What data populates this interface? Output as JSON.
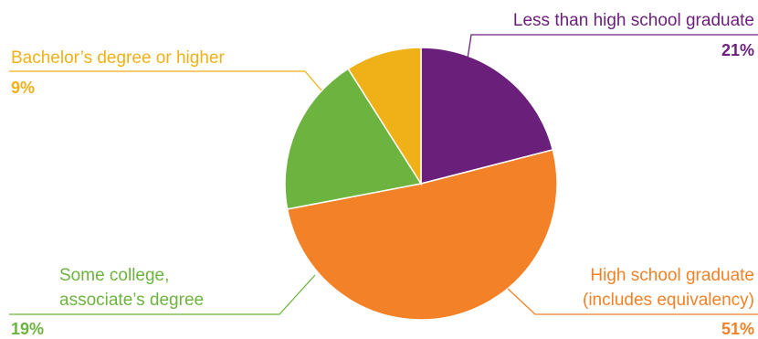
{
  "chart_data": {
    "type": "pie",
    "slices": [
      {
        "label": "Less than high school graduate",
        "value": 21,
        "value_label": "21%",
        "color": "#6a1f7a"
      },
      {
        "label": "High school graduate (includes equivalency)",
        "label_lines": [
          "High school graduate",
          "(includes equivalency)"
        ],
        "value": 51,
        "value_label": "51%",
        "color": "#f28127"
      },
      {
        "label": "Some college, associate’s degree",
        "label_lines": [
          "Some college,",
          "associate’s degree"
        ],
        "value": 19,
        "value_label": "19%",
        "color": "#6db33f"
      },
      {
        "label": "Bachelor’s degree or higher",
        "value": 9,
        "value_label": "9%",
        "color": "#efb117"
      }
    ]
  }
}
